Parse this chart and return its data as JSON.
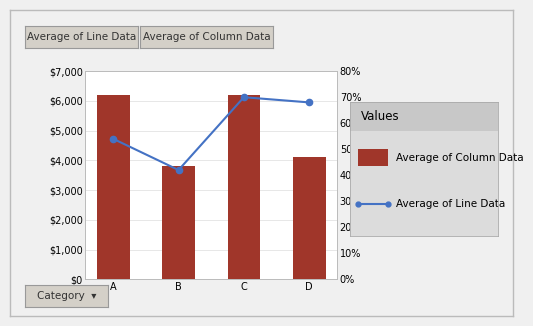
{
  "categories": [
    "A",
    "B",
    "C",
    "D"
  ],
  "bar_values": [
    6200,
    3800,
    6200,
    4100
  ],
  "line_values": [
    0.54,
    0.42,
    0.7,
    0.68
  ],
  "bar_color": "#A0362A",
  "line_color": "#4472C4",
  "left_ylim": [
    0,
    7000
  ],
  "right_ylim": [
    0,
    0.8
  ],
  "left_yticks": [
    0,
    1000,
    2000,
    3000,
    4000,
    5000,
    6000,
    7000
  ],
  "left_yticklabels": [
    "$0",
    "$1,000",
    "$2,000",
    "$3,000",
    "$4,000",
    "$5,000",
    "$6,000",
    "$7,000"
  ],
  "right_yticks": [
    0.0,
    0.1,
    0.2,
    0.3,
    0.4,
    0.5,
    0.6,
    0.7,
    0.8
  ],
  "right_yticklabels": [
    "0%",
    "10%",
    "20%",
    "30%",
    "40%",
    "50%",
    "60%",
    "70%",
    "80%"
  ],
  "legend_title": "Values",
  "legend_bar_label": "Average of Column Data",
  "legend_line_label": "Average of Line Data",
  "filter_btn1": "Average of Line Data",
  "filter_btn2": "Average of Column Data",
  "category_btn": "Category  ▾",
  "bg_color": "#F0F0F0",
  "plot_bg_color": "#FFFFFF",
  "outer_border_color": "#CCCCCC",
  "tick_fontsize": 7,
  "legend_fontsize": 7.5,
  "legend_title_fontsize": 8.5,
  "btn_fontsize": 7.5
}
